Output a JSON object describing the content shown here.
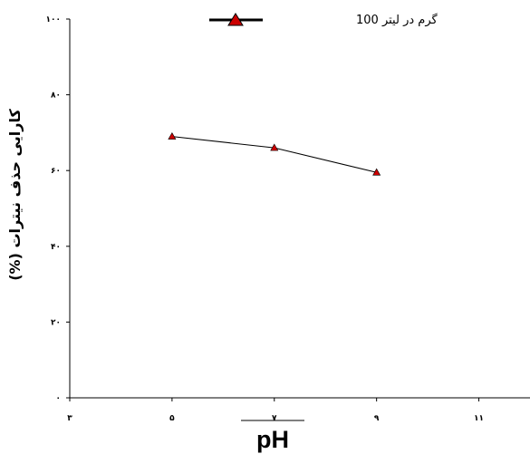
{
  "chart_data": {
    "type": "line",
    "x_ticks": [
      "۳",
      "۵",
      "۷",
      "۹",
      "۱۱"
    ],
    "y_ticks": [
      "۰",
      "۲۰",
      "۴۰",
      "۶۰",
      "۸۰",
      "۱۰۰"
    ],
    "xlim": [
      3,
      12
    ],
    "ylim": [
      0,
      100
    ],
    "xlabel": "pH",
    "ylabel": "کارایی حذف نیترات (%)",
    "legend_position": "top-center",
    "grid": false,
    "series": [
      {
        "name": "گرم در لیتر 100",
        "color": "#cc0000",
        "marker": "triangle",
        "x": [
          5,
          7,
          9
        ],
        "y": [
          69,
          66,
          59.5
        ]
      }
    ]
  }
}
